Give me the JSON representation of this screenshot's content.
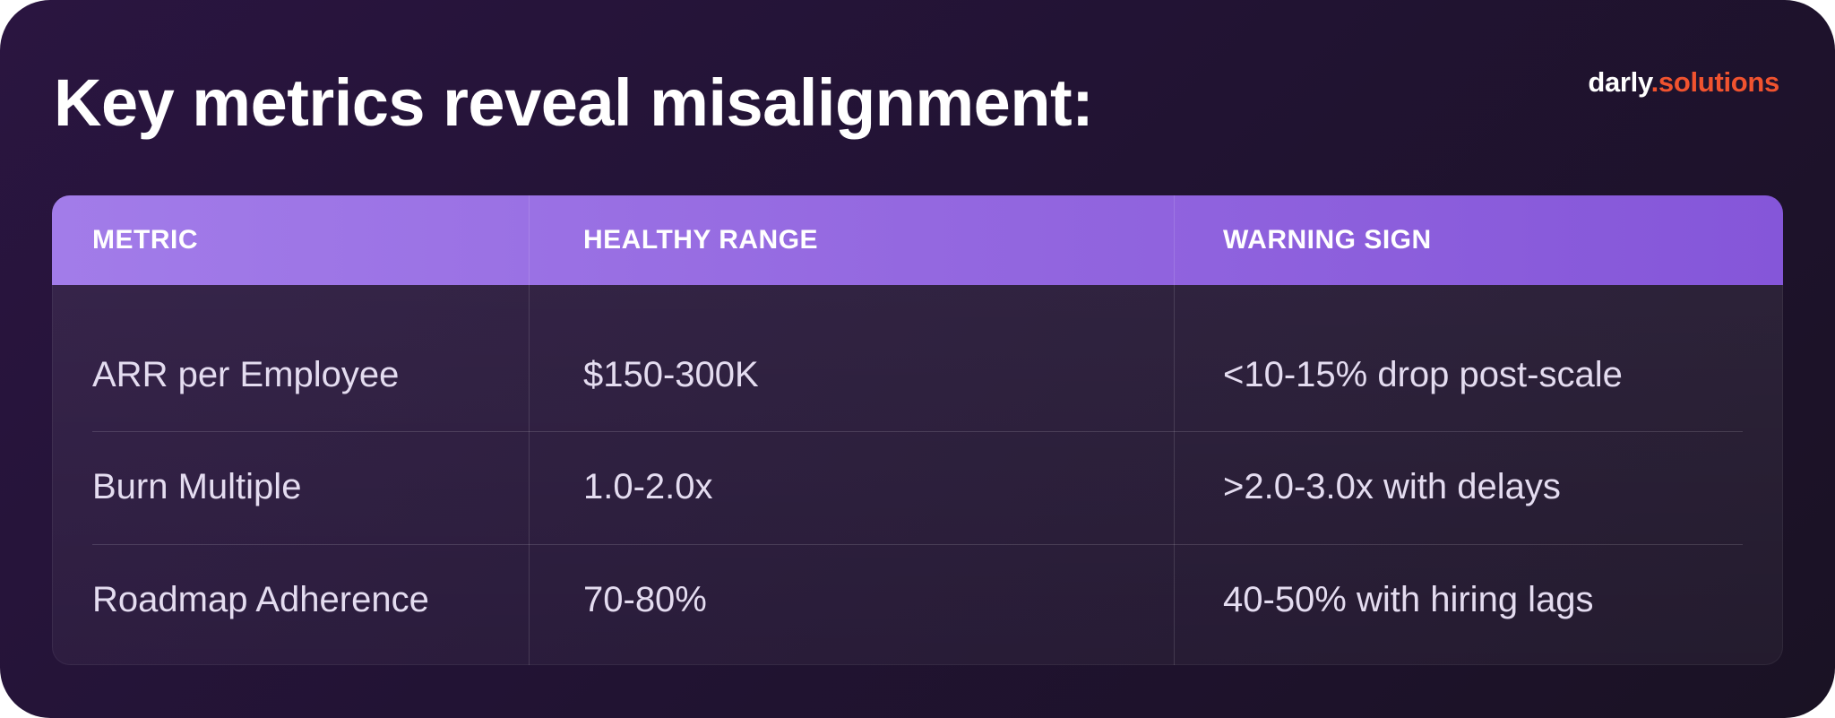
{
  "title": "Key metrics reveal misalignment:",
  "logo": {
    "part1": "darly",
    "part2": ".solutions",
    "accent_color": "#f1532f"
  },
  "table": {
    "header_color": "#9468e0",
    "headers": [
      "METRIC",
      "HEALTHY RANGE",
      "WARNING SIGN"
    ],
    "rows": [
      [
        "ARR per Employee",
        "$150-300K",
        "<10-15% drop post-scale"
      ],
      [
        "Burn Multiple",
        "1.0-2.0x",
        ">2.0-3.0x with delays"
      ],
      [
        "Roadmap Adherence",
        "70-80%",
        "40-50% with hiring lags"
      ]
    ]
  }
}
